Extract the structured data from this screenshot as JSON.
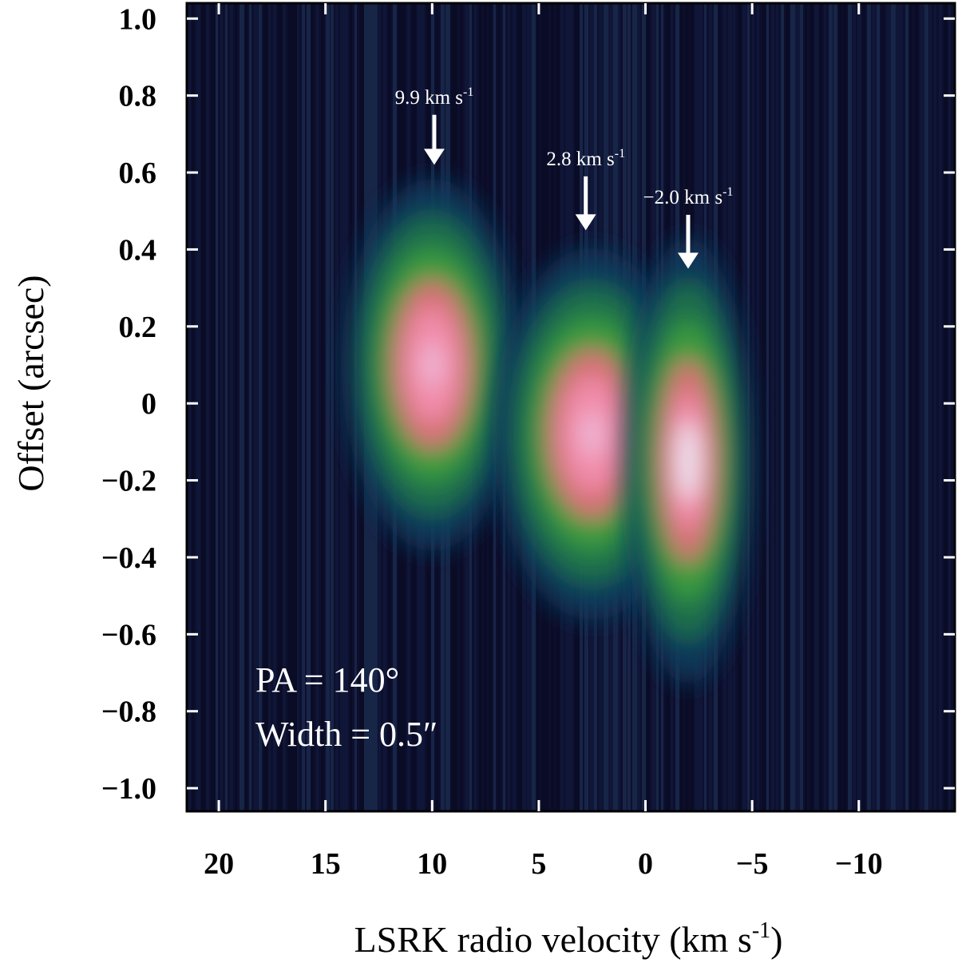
{
  "chart_data": {
    "type": "heatmap",
    "title": "",
    "xlabel": "LSRK radio velocity (km s",
    "xlabel_sup": "-1",
    "xlabel_close": ")",
    "ylabel": "Offset (arcsec)",
    "xlim": [
      21.5,
      -14.5
    ],
    "ylim": [
      -1.06,
      1.04
    ],
    "x_axis_reversed": true,
    "x_ticks": [
      20,
      15,
      10,
      5,
      0,
      -5,
      -10
    ],
    "x_tick_labels": [
      "20",
      "15",
      "10",
      "5",
      "0",
      "−5",
      "−10"
    ],
    "y_ticks": [
      1.0,
      0.8,
      0.6,
      0.4,
      0.2,
      0,
      -0.2,
      -0.4,
      -0.6,
      -0.8,
      -1.0
    ],
    "y_tick_labels": [
      "1.0",
      "0.8",
      "0.6",
      "0.4",
      "0.2",
      "0",
      "−0.2",
      "−0.4",
      "−0.6",
      "−0.8",
      "−1.0"
    ],
    "colormap": [
      "#0d0f2e",
      "#123a5c",
      "#1f7a4a",
      "#3fa33c",
      "#e86a7a",
      "#f48fb0",
      "#eaf6ff"
    ],
    "emission_components": [
      {
        "velocity": 10.0,
        "offset": 0.1,
        "peak": 0.78,
        "v_width": 1.8,
        "offset_width": 0.2
      },
      {
        "velocity": 2.5,
        "offset": -0.08,
        "peak": 0.72,
        "v_width": 2.0,
        "offset_width": 0.2
      },
      {
        "velocity": -2.0,
        "offset": -0.15,
        "peak": 1.0,
        "v_width": 1.3,
        "offset_width": 0.24
      }
    ],
    "annotations": [
      {
        "label": "9.9 km s",
        "sup": "-1",
        "velocity": 9.9,
        "arrow_from": 0.75,
        "arrow_to": 0.62
      },
      {
        "label": "2.8 km s",
        "sup": "-1",
        "velocity": 2.8,
        "arrow_from": 0.59,
        "arrow_to": 0.45
      },
      {
        "label": "−2.0 km s",
        "sup": "-1",
        "velocity": -2.0,
        "arrow_from": 0.49,
        "arrow_to": 0.35
      }
    ],
    "notes": [
      "PA = 140°",
      "Width = 0.5″"
    ]
  }
}
